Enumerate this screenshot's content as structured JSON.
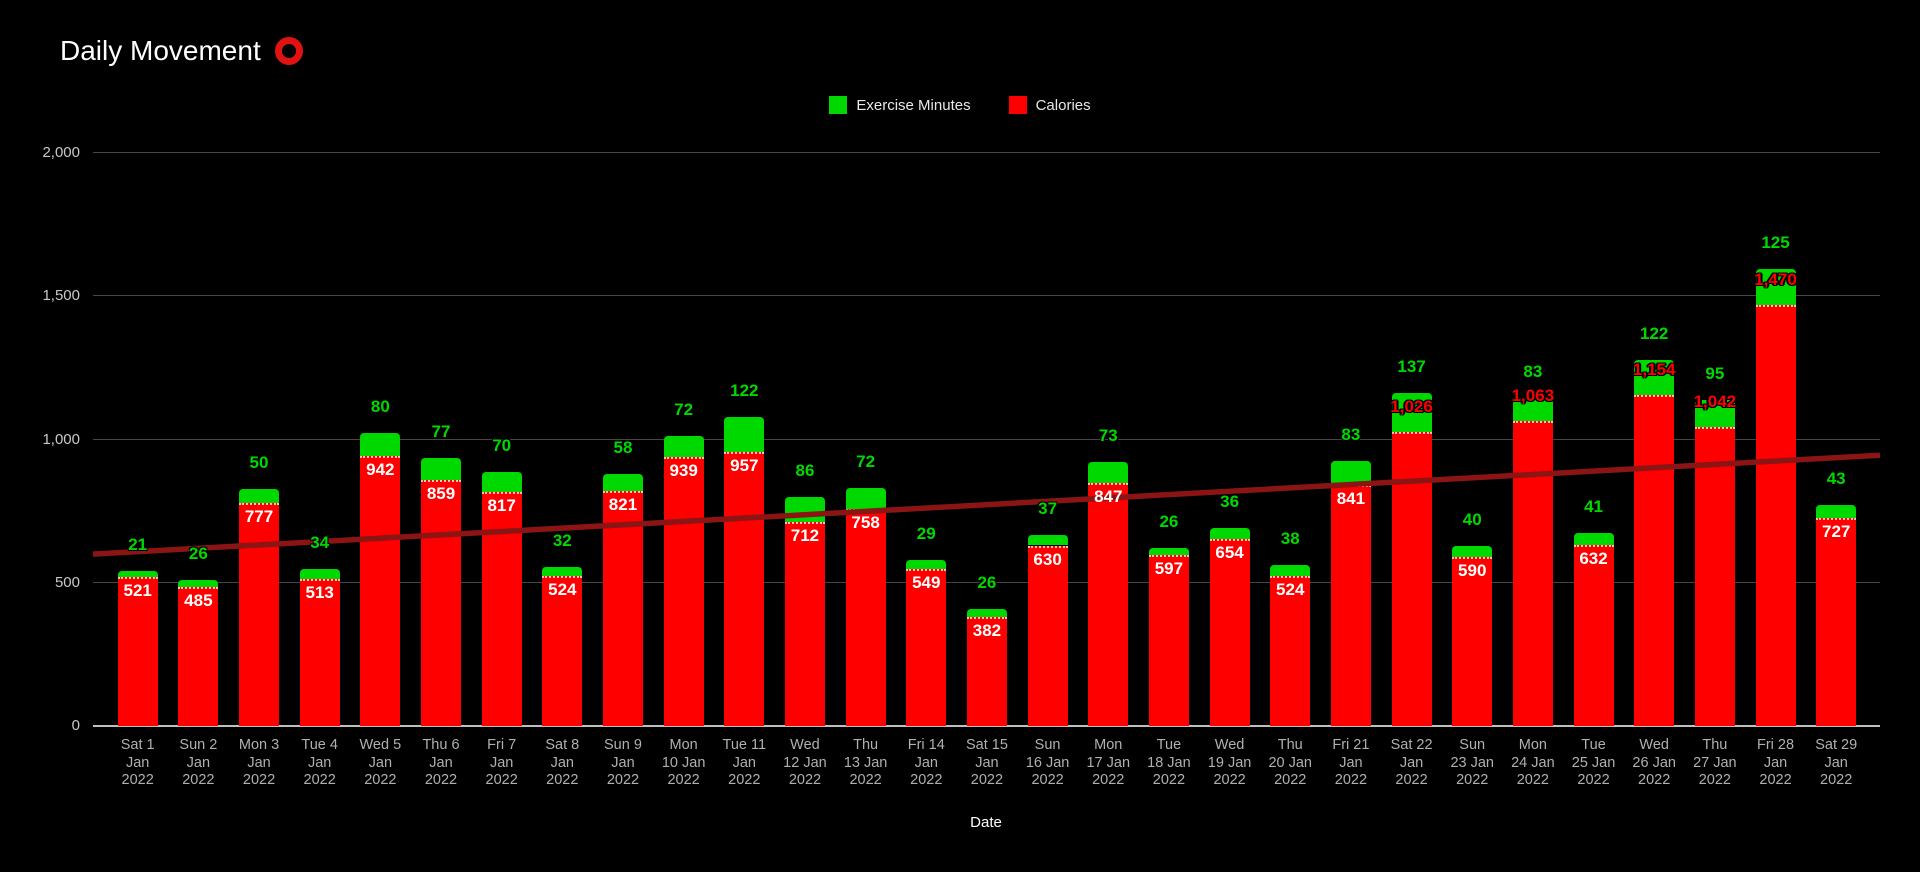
{
  "title": "Daily Movement",
  "title_icon": "red-ring-icon",
  "legend": [
    {
      "label": "Exercise Minutes",
      "color": "#00d900"
    },
    {
      "label": "Calories",
      "color": "#fe0000"
    }
  ],
  "colors": {
    "background": "#000000",
    "exercise_green": "#00d900",
    "calories_red": "#fe0000",
    "trend_dark_red": "#8b1414",
    "gridline": "#454545",
    "baseline": "#bfbfbf",
    "y_tick_text": "#c8c8c8",
    "x_tick_text": "#b0b0b0",
    "title_text": "#ffffff"
  },
  "chart_data": {
    "type": "bar",
    "stacked": true,
    "title": "Daily Movement",
    "xlabel": "Date",
    "ylabel": "",
    "ylim": [
      0,
      2000
    ],
    "yticks": [
      0,
      500,
      1000,
      1500,
      2000
    ],
    "ytick_labels": [
      "0",
      "500",
      "1,000",
      "1,500",
      "2,000"
    ],
    "grid": true,
    "legend_position": "top",
    "categories": [
      "Sat 1 Jan 2022",
      "Sun 2 Jan 2022",
      "Mon 3 Jan 2022",
      "Tue 4 Jan 2022",
      "Wed 5 Jan 2022",
      "Thu 6 Jan 2022",
      "Fri 7 Jan 2022",
      "Sat 8 Jan 2022",
      "Sun 9 Jan 2022",
      "Mon 10 Jan 2022",
      "Tue 11 Jan 2022",
      "Wed 12 Jan 2022",
      "Thu 13 Jan 2022",
      "Fri 14 Jan 2022",
      "Sat 15 Jan 2022",
      "Sun 16 Jan 2022",
      "Mon 17 Jan 2022",
      "Tue 18 Jan 2022",
      "Wed 19 Jan 2022",
      "Thu 20 Jan 2022",
      "Fri 21 Jan 2022",
      "Sat 22 Jan 2022",
      "Sun 23 Jan 2022",
      "Mon 24 Jan 2022",
      "Tue 25 Jan 2022",
      "Wed 26 Jan 2022",
      "Thu 27 Jan 2022",
      "Fri 28 Jan 2022",
      "Sat 29 Jan 2022"
    ],
    "category_label_lines": [
      [
        "Sat 1",
        "Jan",
        "2022"
      ],
      [
        "Sun 2",
        "Jan",
        "2022"
      ],
      [
        "Mon 3",
        "Jan",
        "2022"
      ],
      [
        "Tue 4",
        "Jan",
        "2022"
      ],
      [
        "Wed 5",
        "Jan",
        "2022"
      ],
      [
        "Thu 6",
        "Jan",
        "2022"
      ],
      [
        "Fri 7",
        "Jan",
        "2022"
      ],
      [
        "Sat 8",
        "Jan",
        "2022"
      ],
      [
        "Sun 9",
        "Jan",
        "2022"
      ],
      [
        "Mon",
        "10 Jan",
        "2022"
      ],
      [
        "Tue 11",
        "Jan",
        "2022"
      ],
      [
        "Wed",
        "12 Jan",
        "2022"
      ],
      [
        "Thu",
        "13 Jan",
        "2022"
      ],
      [
        "Fri 14",
        "Jan",
        "2022"
      ],
      [
        "Sat 15",
        "Jan",
        "2022"
      ],
      [
        "Sun",
        "16 Jan",
        "2022"
      ],
      [
        "Mon",
        "17 Jan",
        "2022"
      ],
      [
        "Tue",
        "18 Jan",
        "2022"
      ],
      [
        "Wed",
        "19 Jan",
        "2022"
      ],
      [
        "Thu",
        "20 Jan",
        "2022"
      ],
      [
        "Fri 21",
        "Jan",
        "2022"
      ],
      [
        "Sat 22",
        "Jan",
        "2022"
      ],
      [
        "Sun",
        "23 Jan",
        "2022"
      ],
      [
        "Mon",
        "24 Jan",
        "2022"
      ],
      [
        "Tue",
        "25 Jan",
        "2022"
      ],
      [
        "Wed",
        "26 Jan",
        "2022"
      ],
      [
        "Thu",
        "27 Jan",
        "2022"
      ],
      [
        "Fri 28",
        "Jan",
        "2022"
      ],
      [
        "Sat 29",
        "Jan",
        "2022"
      ]
    ],
    "series": [
      {
        "name": "Calories",
        "color": "#fe0000",
        "values": [
          521,
          485,
          777,
          513,
          942,
          859,
          817,
          524,
          821,
          939,
          957,
          712,
          758,
          549,
          382,
          630,
          847,
          597,
          654,
          524,
          841,
          1026,
          590,
          1063,
          632,
          1154,
          1042,
          1470,
          727
        ]
      },
      {
        "name": "Exercise Minutes",
        "color": "#00d900",
        "values": [
          21,
          26,
          50,
          34,
          80,
          77,
          70,
          32,
          58,
          72,
          122,
          86,
          72,
          29,
          26,
          37,
          73,
          26,
          36,
          38,
          83,
          137,
          40,
          83,
          41,
          122,
          95,
          125,
          43
        ]
      }
    ],
    "trend_line": {
      "series": "Calories",
      "color": "#8b1414",
      "start_value": 600,
      "end_value": 945
    }
  }
}
